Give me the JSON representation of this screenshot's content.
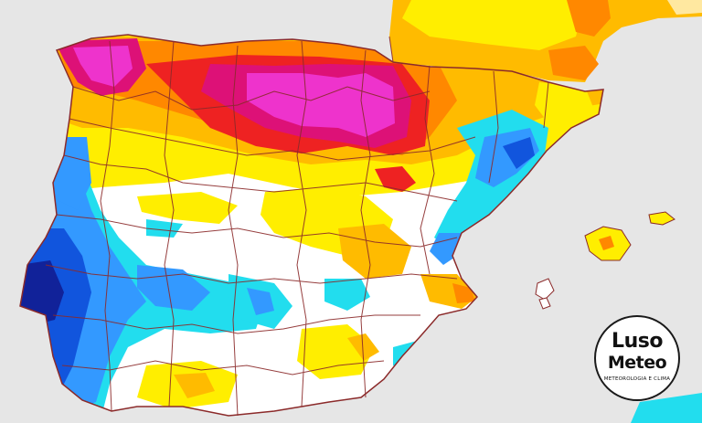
{
  "map": {
    "palette": {
      "sea": "#e6e6e6",
      "magenta": "#ee33cc",
      "deep_pink": "#dd1177",
      "red": "#ee2222",
      "orange": "#ff8800",
      "amber": "#ffbb00",
      "yellow": "#ffee00",
      "white": "#ffffff",
      "cyan": "#22ddee",
      "light_blue": "#3399ff",
      "blue": "#1155dd",
      "navy": "#112299",
      "border": "#8b2a2a"
    }
  },
  "logo": {
    "line1": "Luso",
    "line2": "Meteo",
    "tagline": "METEOROLOGIA E CLIMA"
  }
}
